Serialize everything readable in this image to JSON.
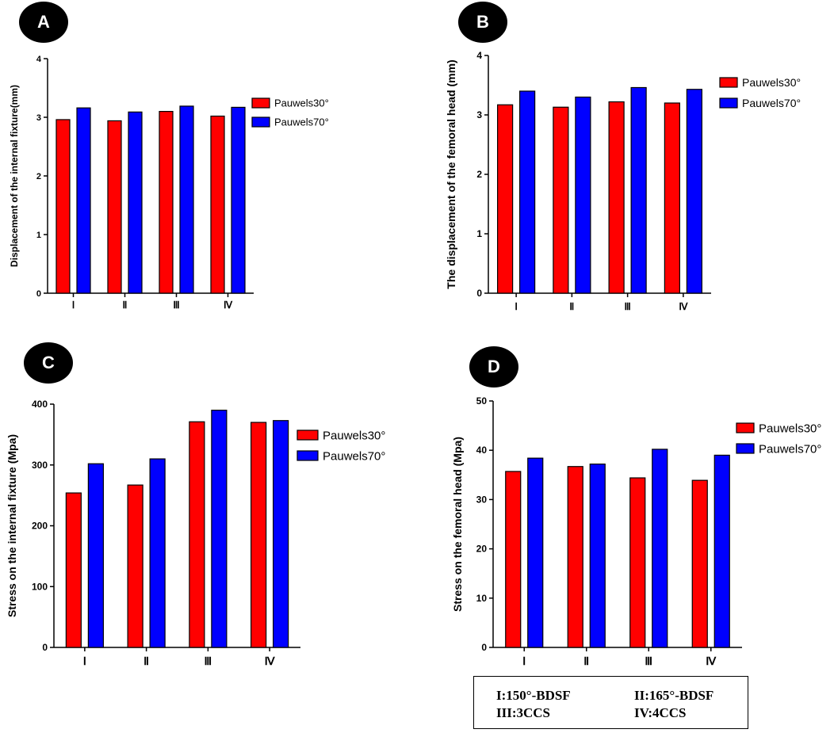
{
  "colors": {
    "pauwels30": "#ff0000",
    "pauwels70": "#0000ff"
  },
  "chart_data": [
    {
      "panel": "A",
      "type": "bar",
      "title": "",
      "xlabel": "",
      "ylabel": "Displacement of the internal fixture(mm)",
      "categories": [
        "Ⅰ",
        "Ⅱ",
        "Ⅲ",
        "Ⅳ"
      ],
      "ylim": [
        0,
        4
      ],
      "yticks": [
        0,
        1,
        2,
        3,
        4
      ],
      "legend_position": "right",
      "series": [
        {
          "name": "Pauwels30°",
          "values": [
            2.96,
            2.94,
            3.1,
            3.02
          ]
        },
        {
          "name": "Pauwels70°",
          "values": [
            3.16,
            3.09,
            3.19,
            3.17
          ]
        }
      ]
    },
    {
      "panel": "B",
      "type": "bar",
      "title": "",
      "xlabel": "",
      "ylabel": "The displacement of the femoral head (mm)",
      "categories": [
        "Ⅰ",
        "Ⅱ",
        "Ⅲ",
        "Ⅳ"
      ],
      "ylim": [
        0,
        4
      ],
      "yticks": [
        0,
        1,
        2,
        3,
        4
      ],
      "legend_position": "top-right",
      "series": [
        {
          "name": "Pauwels30°",
          "values": [
            3.17,
            3.13,
            3.22,
            3.2
          ]
        },
        {
          "name": "Pauwels70°",
          "values": [
            3.4,
            3.3,
            3.46,
            3.43
          ]
        }
      ]
    },
    {
      "panel": "C",
      "type": "bar",
      "title": "",
      "xlabel": "",
      "ylabel": "Stress on the internal fixture (Mpa)",
      "categories": [
        "Ⅰ",
        "Ⅱ",
        "Ⅲ",
        "Ⅳ"
      ],
      "ylim": [
        0,
        400
      ],
      "yticks": [
        0,
        100,
        200,
        300,
        400
      ],
      "legend_position": "right",
      "series": [
        {
          "name": "Pauwels30°",
          "values": [
            254,
            267,
            371,
            370
          ]
        },
        {
          "name": "Pauwels70°",
          "values": [
            302,
            310,
            390,
            373
          ]
        }
      ]
    },
    {
      "panel": "D",
      "type": "bar",
      "title": "",
      "xlabel": "",
      "ylabel": "Stress on the femoral head (Mpa)",
      "categories": [
        "Ⅰ",
        "Ⅱ",
        "Ⅲ",
        "Ⅳ"
      ],
      "ylim": [
        0,
        50
      ],
      "yticks": [
        0,
        10,
        20,
        30,
        40,
        50
      ],
      "legend_position": "top-right",
      "series": [
        {
          "name": "Pauwels30°",
          "values": [
            35.7,
            36.7,
            34.4,
            33.9
          ]
        },
        {
          "name": "Pauwels70°",
          "values": [
            38.4,
            37.2,
            40.2,
            39.0
          ]
        }
      ]
    }
  ],
  "key": {
    "item1": "I:150°-BDSF",
    "item2": "II:165°-BDSF",
    "item3": "III:3CCS",
    "item4": "IV:4CCS"
  }
}
